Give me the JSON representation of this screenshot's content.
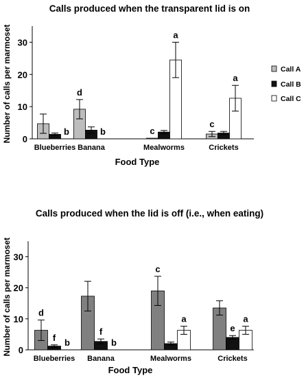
{
  "chart_data": [
    {
      "type": "bar",
      "title": "Calls produced when the transparent lid is on",
      "xlabel": "Food Type",
      "ylabel": "Number of calls per marmoset",
      "ylim": [
        0,
        35
      ],
      "yticks": [
        "0",
        "10",
        "20",
        "30"
      ],
      "ytick_values": [
        0,
        10,
        20,
        30
      ],
      "grid": false,
      "legend_position": "right",
      "categories": [
        "Blueberries",
        "Banana",
        "Mealworms",
        "Crickets"
      ],
      "series": [
        {
          "name": "Call A",
          "color": "#bdbdbd",
          "values": [
            4.7,
            9.2,
            0.2,
            1.5
          ],
          "errors": [
            3.0,
            3.0,
            0,
            0.8
          ],
          "labels": [
            "",
            "d",
            "c",
            "c"
          ]
        },
        {
          "name": "Call B",
          "color": "#111111",
          "values": [
            1.4,
            2.7,
            2.1,
            1.8
          ],
          "errors": [
            0.4,
            1.0,
            0.5,
            0.5
          ],
          "labels": [
            "",
            "",
            "",
            ""
          ]
        },
        {
          "name": "Call C",
          "color": "#ffffff",
          "values": [
            0,
            0,
            24.5,
            12.6
          ],
          "errors": [
            0,
            0,
            5.5,
            4.0
          ],
          "labels": [
            "b",
            "b",
            "a",
            "a"
          ]
        }
      ]
    },
    {
      "type": "bar",
      "title": "Calls produced when the lid is off (i.e., when eating)",
      "xlabel": "Food Type",
      "ylabel": "Number of calls per marmoset",
      "ylim": [
        0,
        35
      ],
      "yticks": [
        "0",
        "10",
        "20",
        "30"
      ],
      "ytick_values": [
        0,
        10,
        20,
        30
      ],
      "grid": false,
      "categories": [
        "Blueberries",
        "Banana",
        "Mealworms",
        "Crickets"
      ],
      "series": [
        {
          "color": "#808080",
          "values": [
            6.3,
            17.3,
            19.0,
            13.5
          ],
          "errors": [
            3.3,
            4.8,
            4.7,
            2.3
          ],
          "labels": [
            "d",
            "",
            "c",
            ""
          ]
        },
        {
          "color": "#111111",
          "values": [
            1.2,
            2.7,
            2.0,
            4.0
          ],
          "errors": [
            0.4,
            0.8,
            0.5,
            0.6
          ],
          "labels": [
            "f",
            "f",
            "",
            "e"
          ]
        },
        {
          "color": "#ffffff",
          "values": [
            0,
            0,
            6.3,
            6.3
          ],
          "errors": [
            0,
            0,
            1.3,
            1.3
          ],
          "labels": [
            "b",
            "b",
            "a",
            "a"
          ]
        }
      ]
    }
  ]
}
